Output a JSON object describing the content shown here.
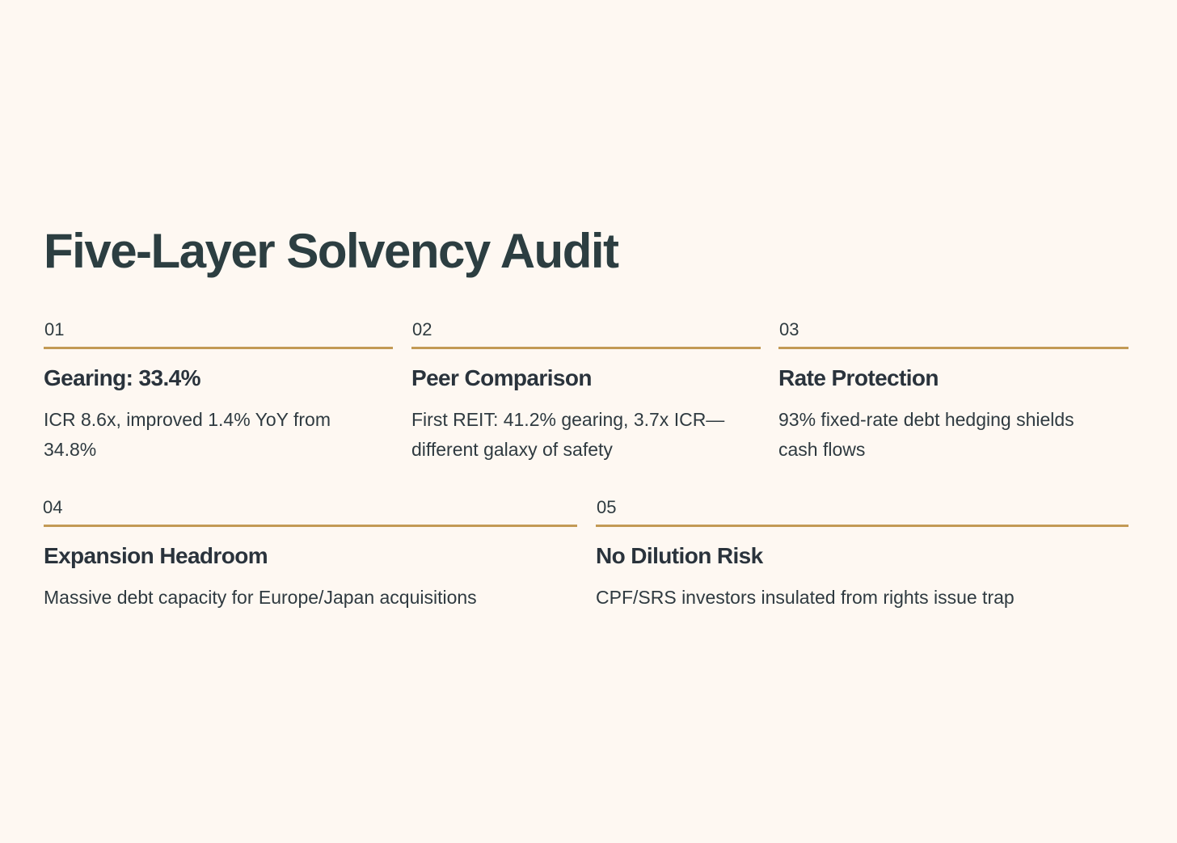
{
  "title": "Five-Layer Solvency Audit",
  "colors": {
    "background": "#FEF8F2",
    "accent_rule": "#C39A55",
    "title": "#2C3E41",
    "text": "#2A333C"
  },
  "cards": [
    {
      "number": "01",
      "heading": "Gearing: 33.4%",
      "description": "ICR 8.6x, improved 1.4% YoY from 34.8%"
    },
    {
      "number": "02",
      "heading": "Peer Comparison",
      "description": "First REIT: 41.2% gearing, 3.7x ICR—different galaxy of safety"
    },
    {
      "number": "03",
      "heading": "Rate Protection",
      "description": "93% fixed-rate debt hedging shields cash flows"
    },
    {
      "number": "04",
      "heading": "Expansion Headroom",
      "description": "Massive debt capacity for Europe/Japan acquisitions"
    },
    {
      "number": "05",
      "heading": "No Dilution Risk",
      "description": "CPF/SRS investors insulated from rights issue trap"
    }
  ]
}
